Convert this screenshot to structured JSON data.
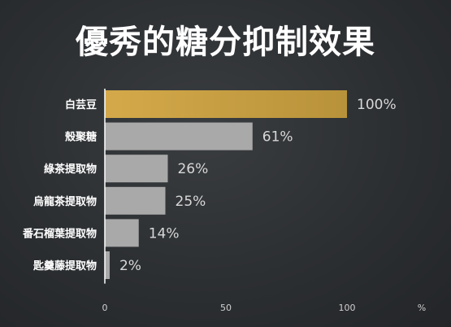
{
  "title": "優秀的糖分抑制效果",
  "chart_data": {
    "type": "bar",
    "orientation": "horizontal",
    "categories": [
      "白芸豆",
      "殼聚糖",
      "綠茶提取物",
      "烏龍茶提取物",
      "番石榴葉提取物",
      "匙羹藤提取物"
    ],
    "values": [
      100,
      61,
      26,
      25,
      14,
      2
    ],
    "value_suffix": "%",
    "xlim": [
      0,
      100
    ],
    "x_ticks": [
      "0",
      "50",
      "100"
    ],
    "x_unit": "%",
    "colors": {
      "highlight": "#c9a340",
      "default": "#a9a9a9",
      "axis": "#ffffff"
    }
  }
}
